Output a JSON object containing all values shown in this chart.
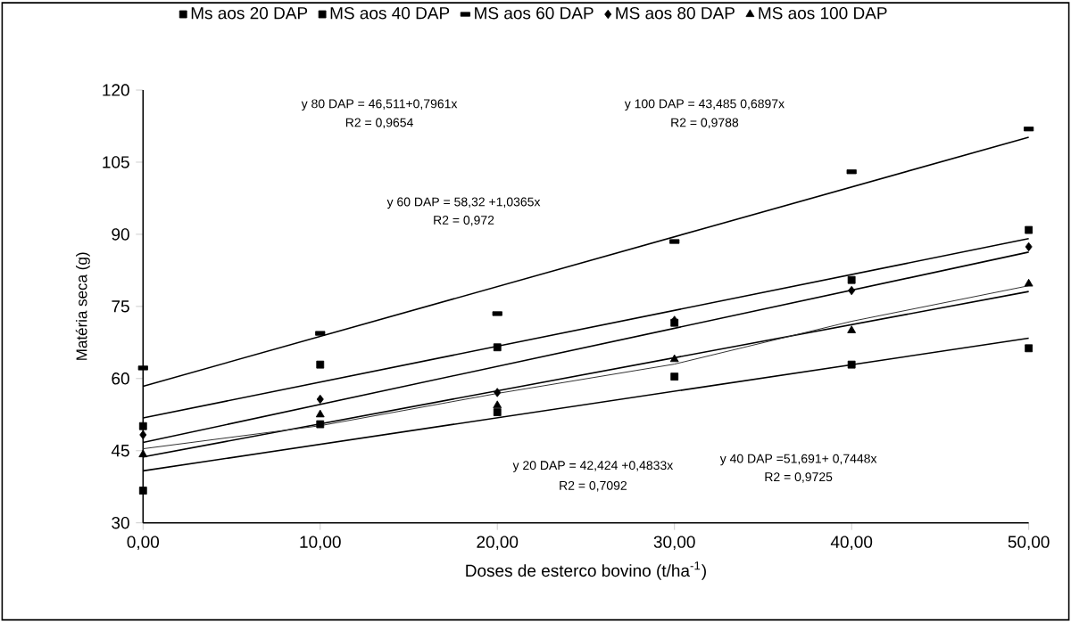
{
  "chart_data": {
    "type": "scatter",
    "xlabel": "Doses de esterco bovino (t/ha$^{-1}$)",
    "ylabel": "Matéria seca (g)",
    "x": [
      0,
      10,
      20,
      30,
      40,
      50
    ],
    "xlim": [
      0,
      50
    ],
    "xticks": [
      {
        "value": 0,
        "label": "0,00"
      },
      {
        "value": 10,
        "label": "10,00"
      },
      {
        "value": 20,
        "label": "20,00"
      },
      {
        "value": 30,
        "label": "30,00"
      },
      {
        "value": 40,
        "label": "40,00"
      },
      {
        "value": 50,
        "label": "50,00"
      }
    ],
    "ylim": [
      30,
      120
    ],
    "yticks": [
      30,
      45,
      60,
      75,
      90,
      105,
      120
    ],
    "grid": false,
    "legend": "top",
    "series": [
      {
        "name": "Ms aos 20 DAP",
        "color": "#000000",
        "marker": "square",
        "values": [
          36.7,
          50.5,
          53.0,
          60.4,
          62.9,
          66.3
        ]
      },
      {
        "name": "MS aos 40 DAP",
        "color": "#000000",
        "marker": "square",
        "values": [
          50.1,
          62.9,
          66.5,
          71.6,
          80.5,
          90.9
        ]
      },
      {
        "name": "MS aos 60 DAP",
        "color": "#000000",
        "values": [
          62.2,
          69.4,
          73.5,
          88.5,
          103.0,
          111.9
        ]
      },
      {
        "name": "MS aos 80 DAP",
        "color": "#000000",
        "marker": "diamond",
        "values": [
          48.3,
          55.7,
          57.1,
          72.1,
          78.3,
          87.4
        ]
      },
      {
        "name": "MS aos 100 DAP",
        "color": "#000000",
        "marker": "triangle",
        "values": [
          44.2,
          52.5,
          54.4,
          64.0,
          70.0,
          79.7
        ]
      },
      {
        "type": "line",
        "color": "#000000",
        "marker": "none",
        "x": [
          0,
          50
        ],
        "values": [
          40.8,
          68.4
        ]
      },
      {
        "type": "line",
        "color": "#000000",
        "marker": "none",
        "x": [
          0,
          50
        ],
        "values": [
          51.8,
          89.1
        ]
      },
      {
        "type": "line",
        "color": "#000000",
        "marker": "none",
        "x": [
          0,
          50
        ],
        "values": [
          58.4,
          110.2
        ]
      },
      {
        "type": "line",
        "color": "#000000",
        "marker": "none",
        "x": [
          0,
          50
        ],
        "values": [
          46.7,
          86.3
        ]
      },
      {
        "type": "line",
        "color": "#000000",
        "marker": "none",
        "x": [
          0,
          50
        ],
        "values": [
          43.7,
          78.1
        ]
      },
      {
        "type": "line",
        "color": "#333333",
        "marker": "none",
        "x": [
          0,
          10,
          20,
          30,
          40,
          50
        ],
        "values": [
          45.4,
          50.2,
          56.9,
          63.0,
          71.9,
          79.3
        ]
      }
    ],
    "annotations": [
      "y 80 DAP = 46,511+0,7961x",
      "R2 = 0,9654",
      "y 100 DAP = 43,485 0,6897x",
      "R2 = 0,9788",
      "y 60 DAP = 58,32 +1,0365x",
      "R2 = 0,972",
      "y 20 DAP = 42,424 +0,4833x",
      "R2 = 0,7092",
      "y 40 DAP =51,691+ 0,7448x",
      "R2 = 0,9725"
    ]
  }
}
